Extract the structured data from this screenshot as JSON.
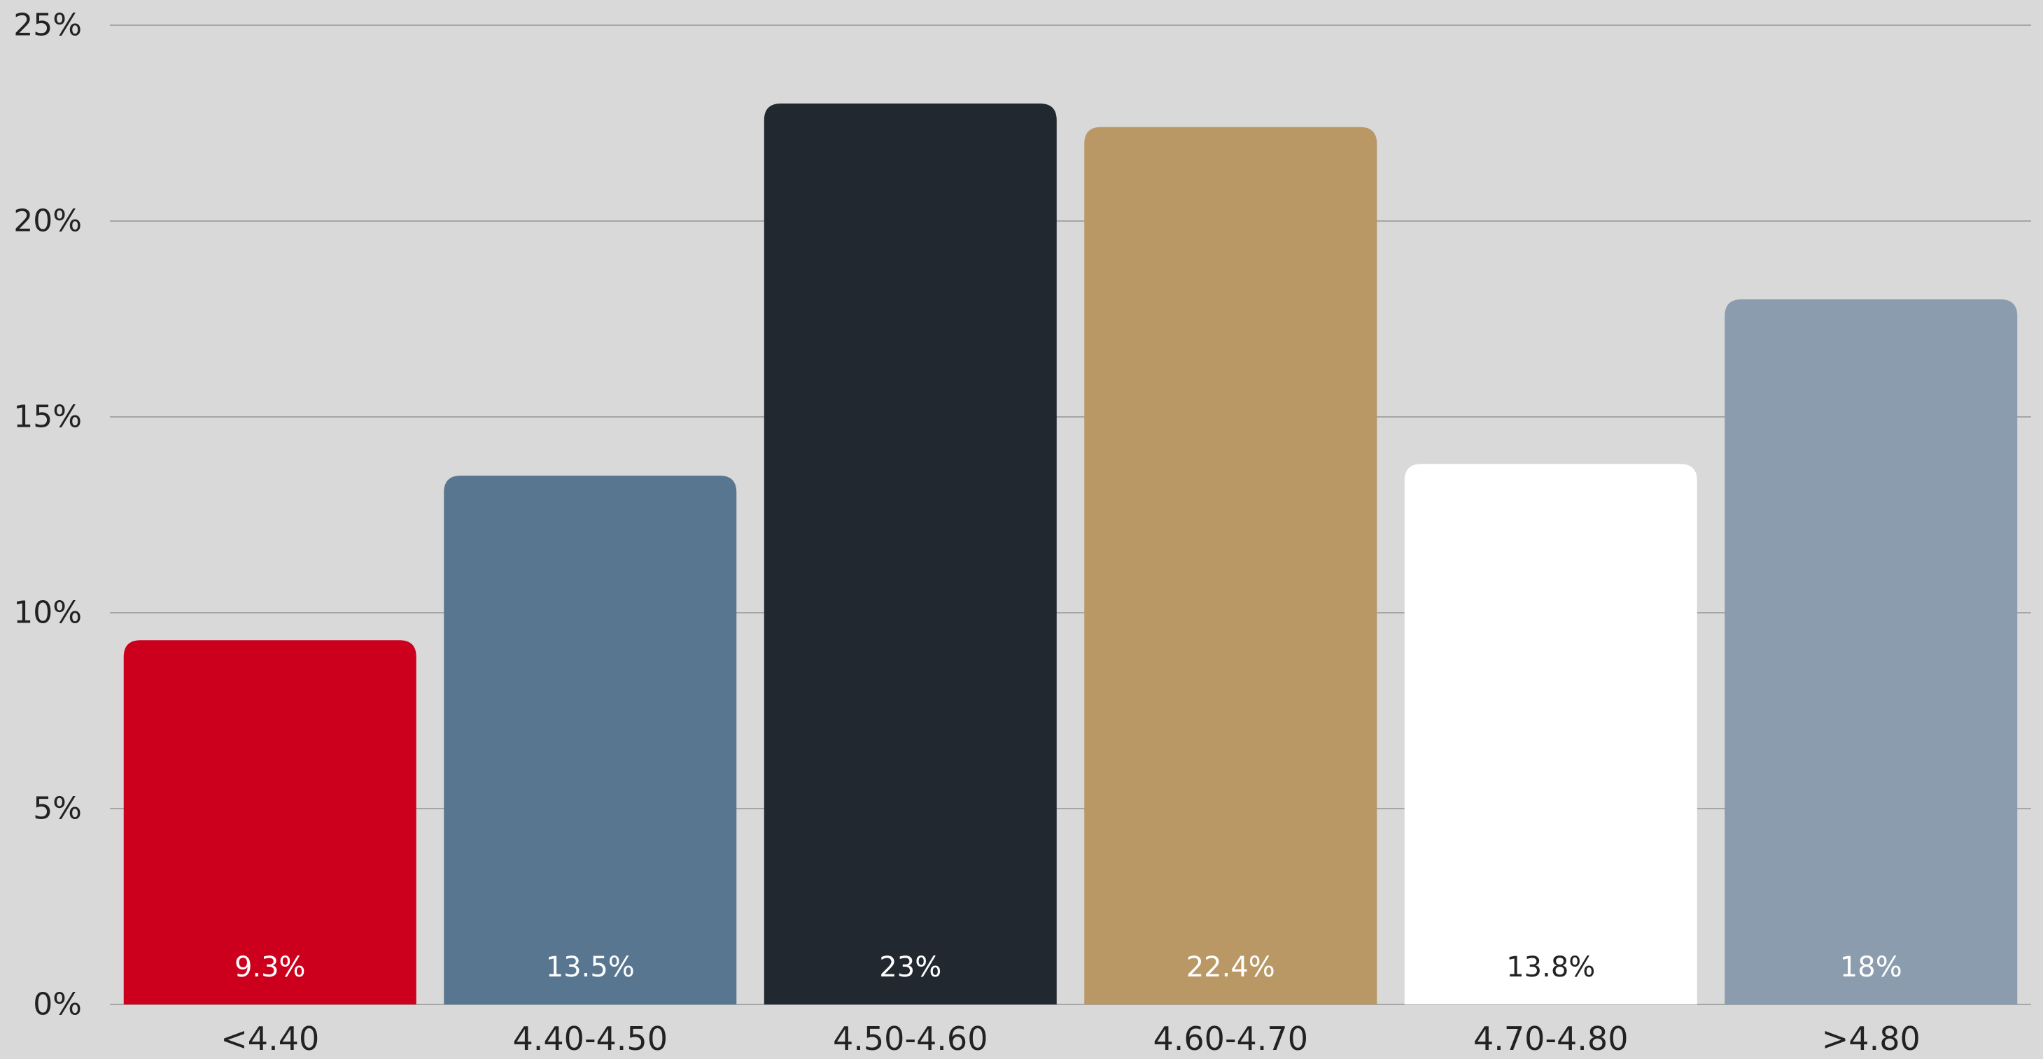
{
  "chart_data": {
    "type": "bar",
    "categories": [
      "<4.40",
      "4.40-4.50",
      "4.50-4.60",
      "4.60-4.70",
      "4.70-4.80",
      ">4.80"
    ],
    "values": [
      9.3,
      13.5,
      23,
      22.4,
      13.8,
      18
    ],
    "data_labels": [
      "9.3%",
      "13.5%",
      "23%",
      "22.4%",
      "13.8%",
      "18%"
    ],
    "bar_colors": [
      "#cc001d",
      "#587690",
      "#212830",
      "#b99866",
      "#ffffff",
      "#8a9cae"
    ],
    "label_colors": [
      "#ffffff",
      "#ffffff",
      "#ffffff",
      "#ffffff",
      "#222222",
      "#ffffff"
    ],
    "ylim": [
      0,
      25
    ],
    "yticks": [
      0,
      5,
      10,
      15,
      20,
      25
    ],
    "ytick_labels": [
      "0%",
      "5%",
      "10%",
      "15%",
      "20%",
      "25%"
    ],
    "grid": true,
    "legend": "none",
    "background": "#d9d9d9",
    "grid_color": "#a6a6a6",
    "axis_text_color": "#222222"
  }
}
